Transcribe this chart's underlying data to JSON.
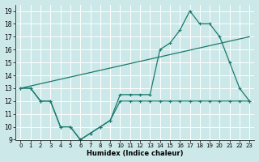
{
  "xlabel": "Humidex (Indice chaleur)",
  "xlim": [
    -0.5,
    23.5
  ],
  "ylim": [
    9,
    19.5
  ],
  "yticks": [
    9,
    10,
    11,
    12,
    13,
    14,
    15,
    16,
    17,
    18,
    19
  ],
  "xticks": [
    0,
    1,
    2,
    3,
    4,
    5,
    6,
    7,
    8,
    9,
    10,
    11,
    12,
    13,
    14,
    15,
    16,
    17,
    18,
    19,
    20,
    21,
    22,
    23
  ],
  "bg_color": "#cde8e8",
  "line_color": "#1a7a6e",
  "series1_x": [
    0,
    1,
    2,
    3,
    4,
    5,
    6,
    7,
    8,
    9,
    10,
    11,
    12,
    13,
    14,
    15,
    16,
    17,
    18,
    19,
    20,
    21,
    22,
    23
  ],
  "series1_y": [
    13,
    13,
    12,
    12,
    10,
    10,
    9,
    9.5,
    10,
    10.5,
    12.5,
    12.5,
    12.5,
    12.5,
    16,
    16.5,
    17.5,
    19,
    18,
    18,
    17,
    15,
    13,
    12
  ],
  "series2_x": [
    0,
    23
  ],
  "series2_y": [
    13,
    17
  ],
  "series3_x": [
    0,
    1,
    2,
    3,
    4,
    5,
    6,
    7,
    8,
    9,
    10,
    11,
    12,
    13,
    14,
    15,
    16,
    17,
    18,
    19,
    20,
    21,
    22,
    23
  ],
  "series3_y": [
    13,
    13,
    12,
    12,
    10,
    10,
    9,
    9.5,
    10,
    10.5,
    12,
    12,
    12,
    12,
    12,
    12,
    12,
    12,
    12,
    12,
    12,
    12,
    12,
    12
  ]
}
